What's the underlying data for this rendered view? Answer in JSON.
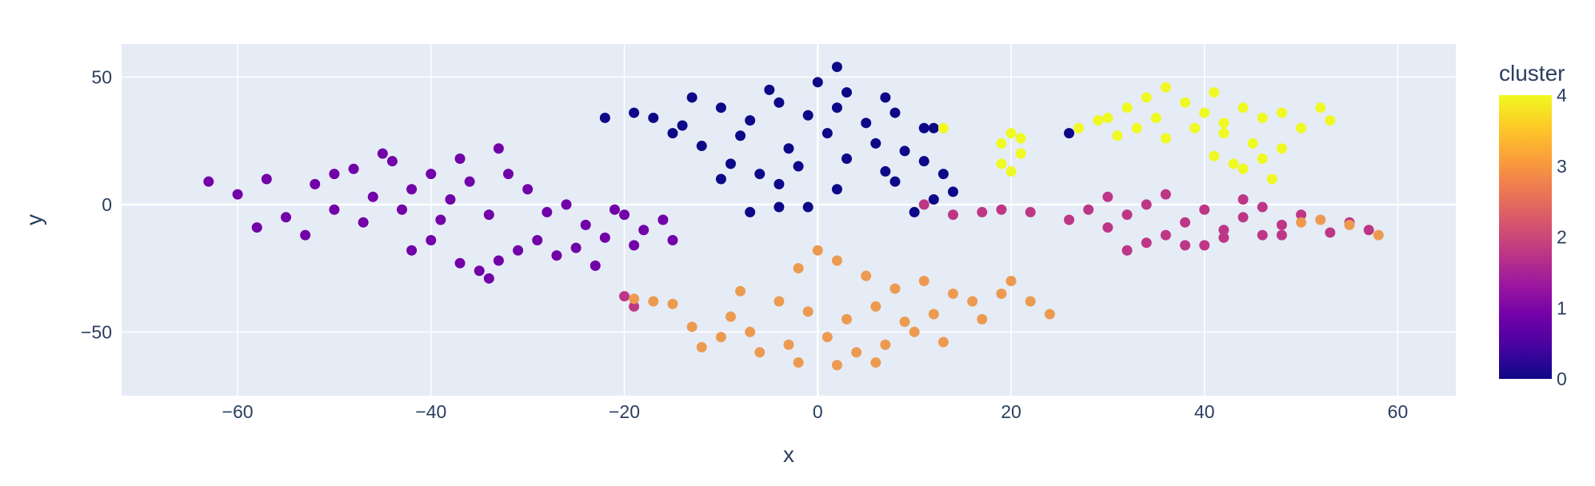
{
  "chart_data": {
    "type": "scatter",
    "title": "",
    "xlabel": "x",
    "ylabel": "y",
    "xlim": [
      -72,
      66
    ],
    "ylim": [
      -75,
      63
    ],
    "x_ticks": [
      -60,
      -40,
      -20,
      0,
      20,
      40,
      60
    ],
    "y_ticks": [
      -50,
      0,
      50
    ],
    "x_tick_labels": [
      "−60",
      "−40",
      "−20",
      "0",
      "20",
      "40",
      "60"
    ],
    "y_tick_labels": [
      "−50",
      "0",
      "50"
    ],
    "grid": true,
    "plot_background": "#e5ecf6",
    "color_by": "cluster",
    "colorbar": {
      "title": "cluster",
      "range": [
        0,
        4
      ],
      "ticks": [
        0,
        1,
        2,
        3,
        4
      ],
      "colors": [
        "#0d0887",
        "#46039f",
        "#7201a8",
        "#9c179e",
        "#bd3786",
        "#d8576b",
        "#ed7953",
        "#fb9f3a",
        "#fdca26",
        "#f0f921"
      ]
    },
    "series": [
      {
        "cluster": 0,
        "color": "#0d0887",
        "points": [
          [
            -17,
            34
          ],
          [
            -14,
            31
          ],
          [
            -10,
            38
          ],
          [
            -7,
            33
          ],
          [
            -4,
            40
          ],
          [
            -1,
            35
          ],
          [
            2,
            38
          ],
          [
            5,
            32
          ],
          [
            8,
            36
          ],
          [
            11,
            30
          ],
          [
            -12,
            23
          ],
          [
            -8,
            27
          ],
          [
            -3,
            22
          ],
          [
            1,
            28
          ],
          [
            6,
            24
          ],
          [
            9,
            21
          ],
          [
            -15,
            28
          ],
          [
            -5,
            45
          ],
          [
            0,
            48
          ],
          [
            3,
            44
          ],
          [
            -9,
            16
          ],
          [
            -6,
            12
          ],
          [
            -2,
            15
          ],
          [
            3,
            18
          ],
          [
            7,
            13
          ],
          [
            11,
            17
          ],
          [
            -10,
            10
          ],
          [
            -4,
            8
          ],
          [
            2,
            6
          ],
          [
            8,
            9
          ],
          [
            13,
            12
          ],
          [
            -7,
            -3
          ],
          [
            -4,
            -1
          ],
          [
            -1,
            -1
          ],
          [
            12,
            2
          ],
          [
            14,
            5
          ],
          [
            10,
            -3
          ],
          [
            26,
            28
          ],
          [
            2,
            54
          ],
          [
            -22,
            34
          ],
          [
            -19,
            36
          ],
          [
            12,
            30
          ],
          [
            7,
            42
          ],
          [
            -13,
            42
          ]
        ]
      },
      {
        "cluster": 1,
        "color": "#7201a8",
        "points": [
          [
            -63,
            9
          ],
          [
            -60,
            4
          ],
          [
            -57,
            10
          ],
          [
            -55,
            -5
          ],
          [
            -52,
            8
          ],
          [
            -50,
            -2
          ],
          [
            -48,
            14
          ],
          [
            -46,
            3
          ],
          [
            -44,
            17
          ],
          [
            -42,
            6
          ],
          [
            -40,
            12
          ],
          [
            -38,
            2
          ],
          [
            -36,
            9
          ],
          [
            -34,
            -4
          ],
          [
            -58,
            -9
          ],
          [
            -53,
            -12
          ],
          [
            -47,
            -7
          ],
          [
            -43,
            -2
          ],
          [
            -39,
            -6
          ],
          [
            -37,
            18
          ],
          [
            -45,
            20
          ],
          [
            -32,
            12
          ],
          [
            -30,
            6
          ],
          [
            -28,
            -3
          ],
          [
            -26,
            0
          ],
          [
            -24,
            -8
          ],
          [
            -22,
            -13
          ],
          [
            -20,
            -4
          ],
          [
            -18,
            -10
          ],
          [
            -16,
            -6
          ],
          [
            -15,
            -14
          ],
          [
            -29,
            -14
          ],
          [
            -27,
            -20
          ],
          [
            -31,
            -18
          ],
          [
            -33,
            -22
          ],
          [
            -35,
            -26
          ],
          [
            -37,
            -23
          ],
          [
            -34,
            -29
          ],
          [
            -25,
            -17
          ],
          [
            -23,
            -24
          ],
          [
            -21,
            -2
          ],
          [
            -19,
            -16
          ],
          [
            -40,
            -14
          ],
          [
            -42,
            -18
          ],
          [
            -33,
            22
          ],
          [
            -50,
            12
          ]
        ]
      },
      {
        "cluster": 2,
        "color": "#bd3786",
        "points": [
          [
            28,
            -2
          ],
          [
            30,
            -9
          ],
          [
            32,
            -4
          ],
          [
            34,
            0
          ],
          [
            36,
            -12
          ],
          [
            38,
            -7
          ],
          [
            40,
            -2
          ],
          [
            42,
            -10
          ],
          [
            44,
            -5
          ],
          [
            46,
            -1
          ],
          [
            48,
            -8
          ],
          [
            50,
            -4
          ],
          [
            34,
            -15
          ],
          [
            38,
            -16
          ],
          [
            42,
            -13
          ],
          [
            46,
            -12
          ],
          [
            30,
            3
          ],
          [
            36,
            4
          ],
          [
            44,
            2
          ],
          [
            22,
            -3
          ],
          [
            19,
            -2
          ],
          [
            17,
            -3
          ],
          [
            14,
            -4
          ],
          [
            26,
            -6
          ],
          [
            53,
            -11
          ],
          [
            55,
            -7
          ],
          [
            57,
            -10
          ],
          [
            48,
            -12
          ],
          [
            40,
            -16
          ],
          [
            32,
            -18
          ],
          [
            -20,
            -36
          ],
          [
            -19,
            -40
          ],
          [
            11,
            0
          ]
        ]
      },
      {
        "cluster": 3,
        "color": "#ed9a51",
        "points": [
          [
            -2,
            -25
          ],
          [
            2,
            -22
          ],
          [
            5,
            -28
          ],
          [
            8,
            -33
          ],
          [
            11,
            -30
          ],
          [
            14,
            -35
          ],
          [
            -4,
            -38
          ],
          [
            -1,
            -42
          ],
          [
            3,
            -45
          ],
          [
            6,
            -40
          ],
          [
            9,
            -46
          ],
          [
            12,
            -43
          ],
          [
            -7,
            -50
          ],
          [
            -3,
            -55
          ],
          [
            1,
            -52
          ],
          [
            4,
            -58
          ],
          [
            7,
            -55
          ],
          [
            10,
            -50
          ],
          [
            -9,
            -44
          ],
          [
            -6,
            -58
          ],
          [
            -2,
            -62
          ],
          [
            2,
            -63
          ],
          [
            6,
            -62
          ],
          [
            16,
            -38
          ],
          [
            19,
            -35
          ],
          [
            22,
            -38
          ],
          [
            24,
            -43
          ],
          [
            17,
            -45
          ],
          [
            13,
            -54
          ],
          [
            -10,
            -52
          ],
          [
            -12,
            -56
          ],
          [
            -15,
            -39
          ],
          [
            -17,
            -38
          ],
          [
            -19,
            -37
          ],
          [
            -13,
            -48
          ],
          [
            0,
            -18
          ],
          [
            20,
            -30
          ],
          [
            52,
            -6
          ],
          [
            55,
            -8
          ],
          [
            50,
            -7
          ],
          [
            58,
            -12
          ],
          [
            -8,
            -34
          ]
        ]
      },
      {
        "cluster": 4,
        "color": "#f0f921",
        "points": [
          [
            27,
            30
          ],
          [
            30,
            34
          ],
          [
            32,
            38
          ],
          [
            34,
            42
          ],
          [
            36,
            46
          ],
          [
            38,
            40
          ],
          [
            40,
            36
          ],
          [
            42,
            32
          ],
          [
            44,
            38
          ],
          [
            46,
            34
          ],
          [
            48,
            36
          ],
          [
            50,
            30
          ],
          [
            52,
            38
          ],
          [
            33,
            30
          ],
          [
            36,
            26
          ],
          [
            39,
            30
          ],
          [
            42,
            28
          ],
          [
            29,
            33
          ],
          [
            31,
            27
          ],
          [
            35,
            34
          ],
          [
            41,
            44
          ],
          [
            45,
            24
          ],
          [
            41,
            19
          ],
          [
            43,
            16
          ],
          [
            46,
            18
          ],
          [
            48,
            22
          ],
          [
            44,
            14
          ],
          [
            47,
            10
          ],
          [
            19,
            16
          ],
          [
            20,
            13
          ],
          [
            21,
            20
          ],
          [
            19,
            24
          ],
          [
            21,
            26
          ],
          [
            20,
            28
          ],
          [
            13,
            30
          ],
          [
            53,
            33
          ]
        ]
      }
    ]
  }
}
